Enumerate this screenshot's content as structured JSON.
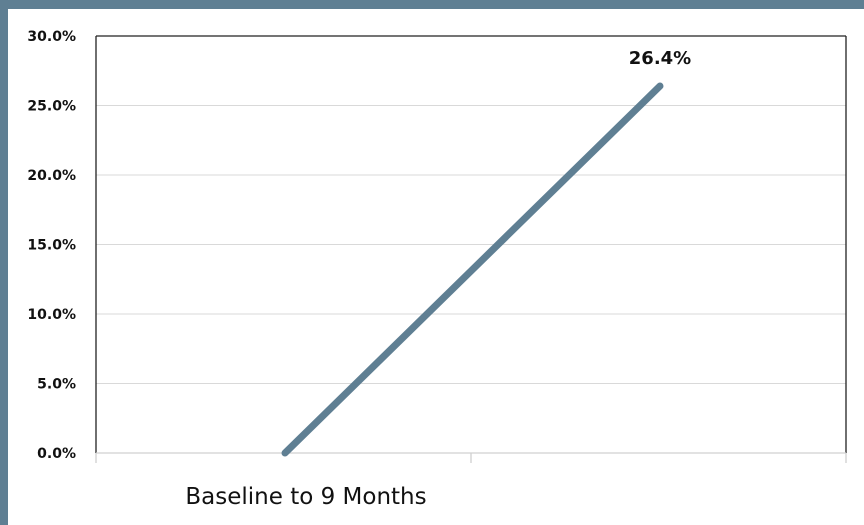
{
  "chart_data": {
    "type": "line",
    "categories": [
      ""
    ],
    "x_label": "Baseline to 9 Months",
    "y_ticks": [
      "0.0%",
      "5.0%",
      "10.0%",
      "15.0%",
      "20.0%",
      "25.0%",
      "30.0%"
    ],
    "ylim": [
      0,
      30
    ],
    "grid": true,
    "series": [
      {
        "points": [
          {
            "x": 0,
            "y": 0.0
          },
          {
            "x": 1,
            "y": 26.4
          }
        ],
        "end_label": "26.4%",
        "color": "#5f7f93"
      }
    ]
  }
}
